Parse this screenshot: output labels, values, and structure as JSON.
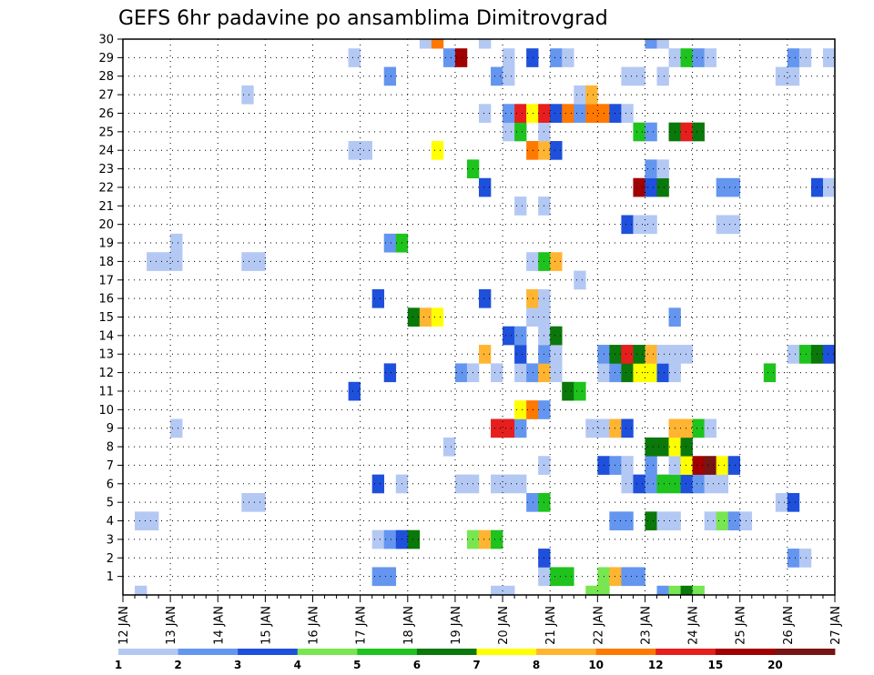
{
  "chart_data": {
    "type": "heatmap",
    "title": "GEFS 6hr padavine po ansamblima Dimitrovgrad",
    "x_tick_labels": [
      "12 JAN",
      "13 JAN",
      "14 JAN",
      "15 JAN",
      "16 JAN",
      "17 JAN",
      "18 JAN",
      "19 JAN",
      "20 JAN",
      "21 JAN",
      "22 JAN",
      "23 JAN",
      "24 JAN",
      "25 JAN",
      "26 JAN",
      "27 JAN"
    ],
    "y_tick_labels": [
      "1",
      "2",
      "3",
      "4",
      "5",
      "6",
      "7",
      "8",
      "9",
      "10",
      "11",
      "12",
      "13",
      "14",
      "15",
      "16",
      "17",
      "18",
      "19",
      "20",
      "21",
      "22",
      "23",
      "24",
      "25",
      "26",
      "27",
      "28",
      "29",
      "30"
    ],
    "xlim": [
      "12 JAN",
      "27 JAN"
    ],
    "ylim": [
      0,
      30
    ],
    "time_step_hours": 6,
    "grid": true,
    "legend_position": "bottom",
    "legend": {
      "thresholds": [
        "1",
        "2",
        "3",
        "4",
        "5",
        "6",
        "7",
        "8",
        "10",
        "12",
        "15",
        "20"
      ],
      "colors": [
        "#b4c8f4",
        "#6496f0",
        "#1e50dc",
        "#78e650",
        "#1ec31e",
        "#0a780a",
        "#ffff00",
        "#ffb432",
        "#ff7800",
        "#e61e1e",
        "#a00000",
        "#781414"
      ]
    },
    "cells_format": "[day-of-JAN at cell start (6h steps), member, color level 0-11]",
    "cells": [
      [
        12.25,
        0,
        0
      ],
      [
        19.75,
        0,
        0
      ],
      [
        20.0,
        0,
        0
      ],
      [
        21.75,
        0,
        3
      ],
      [
        22.0,
        0,
        3
      ],
      [
        23.25,
        0,
        1
      ],
      [
        23.5,
        0,
        3
      ],
      [
        23.75,
        0,
        5
      ],
      [
        24.0,
        0,
        3
      ],
      [
        17.25,
        1,
        1
      ],
      [
        17.5,
        1,
        1
      ],
      [
        20.75,
        1,
        0
      ],
      [
        21.0,
        1,
        4
      ],
      [
        21.25,
        1,
        4
      ],
      [
        22.0,
        1,
        3
      ],
      [
        22.25,
        1,
        7
      ],
      [
        22.5,
        1,
        1
      ],
      [
        22.75,
        1,
        1
      ],
      [
        20.75,
        2,
        2
      ],
      [
        26.0,
        2,
        1
      ],
      [
        26.25,
        2,
        0
      ],
      [
        17.25,
        3,
        0
      ],
      [
        17.5,
        3,
        1
      ],
      [
        17.75,
        3,
        2
      ],
      [
        18.0,
        3,
        5
      ],
      [
        19.25,
        3,
        3
      ],
      [
        19.5,
        3,
        7
      ],
      [
        19.75,
        3,
        4
      ],
      [
        12.25,
        4,
        0
      ],
      [
        12.5,
        4,
        0
      ],
      [
        22.25,
        4,
        1
      ],
      [
        22.5,
        4,
        1
      ],
      [
        23.0,
        4,
        5
      ],
      [
        23.25,
        4,
        0
      ],
      [
        23.5,
        4,
        0
      ],
      [
        24.25,
        4,
        0
      ],
      [
        24.5,
        4,
        3
      ],
      [
        24.75,
        4,
        1
      ],
      [
        25.0,
        4,
        0
      ],
      [
        14.5,
        5,
        0
      ],
      [
        14.75,
        5,
        0
      ],
      [
        20.5,
        5,
        1
      ],
      [
        20.75,
        5,
        4
      ],
      [
        25.75,
        5,
        0
      ],
      [
        26.0,
        5,
        2
      ],
      [
        17.25,
        6,
        2
      ],
      [
        17.75,
        6,
        0
      ],
      [
        19.0,
        6,
        0
      ],
      [
        19.25,
        6,
        0
      ],
      [
        19.75,
        6,
        0
      ],
      [
        20.0,
        6,
        0
      ],
      [
        20.25,
        6,
        0
      ],
      [
        22.5,
        6,
        0
      ],
      [
        22.75,
        6,
        2
      ],
      [
        23.0,
        6,
        1
      ],
      [
        23.25,
        6,
        4
      ],
      [
        23.5,
        6,
        4
      ],
      [
        23.75,
        6,
        2
      ],
      [
        24.0,
        6,
        1
      ],
      [
        24.25,
        6,
        0
      ],
      [
        24.5,
        6,
        0
      ],
      [
        20.75,
        7,
        0
      ],
      [
        22.0,
        7,
        2
      ],
      [
        22.25,
        7,
        1
      ],
      [
        22.5,
        7,
        0
      ],
      [
        23.0,
        7,
        1
      ],
      [
        23.5,
        7,
        0
      ],
      [
        23.75,
        7,
        6
      ],
      [
        24.0,
        7,
        10
      ],
      [
        24.25,
        7,
        11
      ],
      [
        24.5,
        7,
        6
      ],
      [
        24.75,
        7,
        2
      ],
      [
        18.75,
        8,
        0
      ],
      [
        23.0,
        8,
        5
      ],
      [
        23.25,
        8,
        5
      ],
      [
        23.5,
        8,
        6
      ],
      [
        23.75,
        8,
        5
      ],
      [
        13.0,
        9,
        0
      ],
      [
        19.75,
        9,
        9
      ],
      [
        20.0,
        9,
        9
      ],
      [
        20.25,
        9,
        1
      ],
      [
        21.75,
        9,
        0
      ],
      [
        22.0,
        9,
        0
      ],
      [
        22.25,
        9,
        7
      ],
      [
        22.5,
        9,
        2
      ],
      [
        23.5,
        9,
        7
      ],
      [
        23.75,
        9,
        7
      ],
      [
        24.0,
        9,
        4
      ],
      [
        24.25,
        9,
        0
      ],
      [
        20.25,
        10,
        6
      ],
      [
        20.5,
        10,
        8
      ],
      [
        20.75,
        10,
        1
      ],
      [
        16.75,
        11,
        2
      ],
      [
        21.25,
        11,
        5
      ],
      [
        21.5,
        11,
        4
      ],
      [
        17.5,
        12,
        2
      ],
      [
        19.0,
        12,
        1
      ],
      [
        19.25,
        12,
        0
      ],
      [
        19.75,
        12,
        0
      ],
      [
        20.25,
        12,
        0
      ],
      [
        20.5,
        12,
        1
      ],
      [
        20.75,
        12,
        7
      ],
      [
        21.0,
        12,
        0
      ],
      [
        22.0,
        12,
        0
      ],
      [
        22.25,
        12,
        1
      ],
      [
        22.5,
        12,
        5
      ],
      [
        22.75,
        12,
        6
      ],
      [
        23.0,
        12,
        6
      ],
      [
        23.25,
        12,
        2
      ],
      [
        23.5,
        12,
        0
      ],
      [
        25.5,
        12,
        4
      ],
      [
        19.5,
        13,
        7
      ],
      [
        20.25,
        13,
        2
      ],
      [
        20.75,
        13,
        1
      ],
      [
        21.0,
        13,
        0
      ],
      [
        22.0,
        13,
        1
      ],
      [
        22.25,
        13,
        5
      ],
      [
        22.5,
        13,
        9
      ],
      [
        22.75,
        13,
        5
      ],
      [
        23.0,
        13,
        7
      ],
      [
        23.25,
        13,
        0
      ],
      [
        23.5,
        13,
        0
      ],
      [
        23.75,
        13,
        0
      ],
      [
        26.0,
        13,
        0
      ],
      [
        26.25,
        13,
        4
      ],
      [
        26.5,
        13,
        5
      ],
      [
        26.75,
        13,
        2
      ],
      [
        20.0,
        14,
        2
      ],
      [
        20.25,
        14,
        1
      ],
      [
        20.75,
        14,
        0
      ],
      [
        21.0,
        14,
        5
      ],
      [
        18.0,
        15,
        5
      ],
      [
        18.25,
        15,
        7
      ],
      [
        18.5,
        15,
        6
      ],
      [
        20.5,
        15,
        0
      ],
      [
        20.75,
        15,
        0
      ],
      [
        23.5,
        15,
        1
      ],
      [
        17.25,
        16,
        2
      ],
      [
        19.5,
        16,
        2
      ],
      [
        20.5,
        16,
        7
      ],
      [
        20.75,
        16,
        0
      ],
      [
        21.5,
        17,
        0
      ],
      [
        12.5,
        18,
        0
      ],
      [
        12.75,
        18,
        0
      ],
      [
        13.0,
        18,
        0
      ],
      [
        14.5,
        18,
        0
      ],
      [
        14.75,
        18,
        0
      ],
      [
        20.5,
        18,
        0
      ],
      [
        20.75,
        18,
        4
      ],
      [
        21.0,
        18,
        7
      ],
      [
        13.0,
        19,
        0
      ],
      [
        17.5,
        19,
        1
      ],
      [
        17.75,
        19,
        4
      ],
      [
        22.5,
        20,
        2
      ],
      [
        22.75,
        20,
        0
      ],
      [
        23.0,
        20,
        0
      ],
      [
        24.5,
        20,
        0
      ],
      [
        24.75,
        20,
        0
      ],
      [
        20.25,
        21,
        0
      ],
      [
        20.75,
        21,
        0
      ],
      [
        19.5,
        22,
        2
      ],
      [
        22.75,
        22,
        10
      ],
      [
        23.0,
        22,
        2
      ],
      [
        23.25,
        22,
        5
      ],
      [
        24.5,
        22,
        1
      ],
      [
        24.75,
        22,
        1
      ],
      [
        26.5,
        22,
        2
      ],
      [
        26.75,
        22,
        0
      ],
      [
        19.25,
        23,
        4
      ],
      [
        23.0,
        23,
        1
      ],
      [
        23.25,
        23,
        0
      ],
      [
        16.75,
        24,
        0
      ],
      [
        17.0,
        24,
        0
      ],
      [
        18.5,
        24,
        6
      ],
      [
        20.5,
        24,
        8
      ],
      [
        20.75,
        24,
        7
      ],
      [
        21.0,
        24,
        2
      ],
      [
        20.0,
        25,
        0
      ],
      [
        20.25,
        25,
        4
      ],
      [
        20.75,
        25,
        0
      ],
      [
        22.75,
        25,
        4
      ],
      [
        23.0,
        25,
        1
      ],
      [
        23.5,
        25,
        5
      ],
      [
        23.75,
        25,
        9
      ],
      [
        24.0,
        25,
        5
      ],
      [
        19.5,
        26,
        0
      ],
      [
        20.0,
        26,
        1
      ],
      [
        20.25,
        26,
        9
      ],
      [
        20.5,
        26,
        6
      ],
      [
        20.75,
        26,
        9
      ],
      [
        21.0,
        26,
        2
      ],
      [
        21.25,
        26,
        8
      ],
      [
        21.5,
        26,
        1
      ],
      [
        21.75,
        26,
        8
      ],
      [
        22.0,
        26,
        8
      ],
      [
        22.25,
        26,
        2
      ],
      [
        22.5,
        26,
        0
      ],
      [
        14.5,
        27,
        0
      ],
      [
        21.5,
        27,
        0
      ],
      [
        21.75,
        27,
        7
      ],
      [
        17.5,
        28,
        1
      ],
      [
        19.75,
        28,
        1
      ],
      [
        20.0,
        28,
        0
      ],
      [
        22.5,
        28,
        0
      ],
      [
        22.75,
        28,
        0
      ],
      [
        23.25,
        28,
        0
      ],
      [
        25.75,
        28,
        0
      ],
      [
        26.0,
        28,
        0
      ],
      [
        16.75,
        29,
        0
      ],
      [
        18.75,
        29,
        1
      ],
      [
        19.0,
        29,
        10
      ],
      [
        20.0,
        29,
        0
      ],
      [
        20.5,
        29,
        2
      ],
      [
        21.0,
        29,
        1
      ],
      [
        21.25,
        29,
        0
      ],
      [
        23.5,
        29,
        0
      ],
      [
        23.75,
        29,
        4
      ],
      [
        24.0,
        29,
        1
      ],
      [
        24.25,
        29,
        0
      ],
      [
        26.0,
        29,
        1
      ],
      [
        26.25,
        29,
        0
      ],
      [
        26.75,
        29,
        0
      ],
      [
        18.25,
        30,
        0
      ],
      [
        18.5,
        30,
        8
      ],
      [
        19.5,
        30,
        0
      ],
      [
        23.0,
        30,
        1
      ],
      [
        23.25,
        30,
        0
      ]
    ]
  }
}
